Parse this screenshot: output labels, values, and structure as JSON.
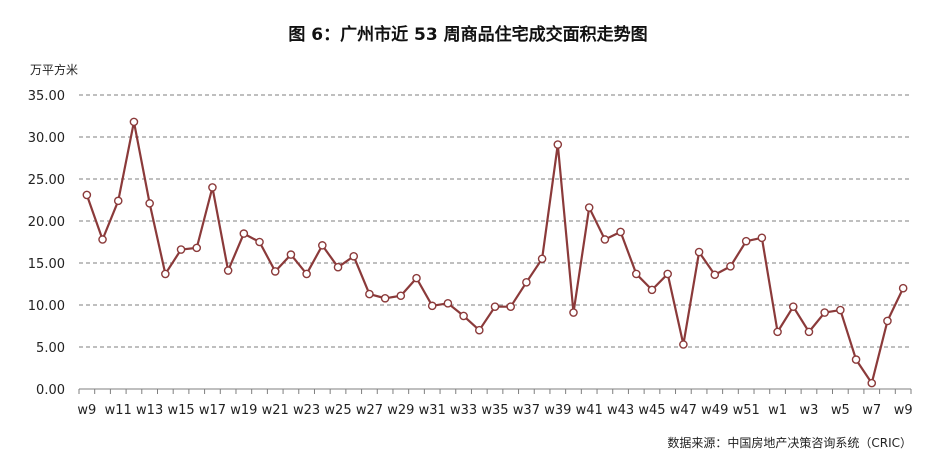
{
  "chart_data": {
    "type": "line",
    "title": "图 6：广州市近 53 周商品住宅成交面积走势图",
    "ylabel": "万平方米",
    "source": "数据来源：中国房地产决策咨询系统（CRIC）",
    "ylim": [
      0,
      35
    ],
    "yticks": [
      "0.00",
      "5.00",
      "10.00",
      "15.00",
      "20.00",
      "25.00",
      "30.00",
      "35.00"
    ],
    "grid": true,
    "legend": "none",
    "color": "#8b3a3a",
    "x": [
      "w9",
      "w10",
      "w11",
      "w12",
      "w13",
      "w14",
      "w15",
      "w16",
      "w17",
      "w18",
      "w19",
      "w20",
      "w21",
      "w22",
      "w23",
      "w24",
      "w25",
      "w26",
      "w27",
      "w28",
      "w29",
      "w30",
      "w31",
      "w32",
      "w33",
      "w34",
      "w35",
      "w36",
      "w37",
      "w38",
      "w39",
      "w40",
      "w41",
      "w42",
      "w43",
      "w44",
      "w45",
      "w46",
      "w47",
      "w48",
      "w49",
      "w50",
      "w51",
      "w52",
      "w1",
      "w2",
      "w3",
      "w4",
      "w5",
      "w6",
      "w7",
      "w8",
      "w9"
    ],
    "xtick_labels": [
      "w9",
      "",
      "w11",
      "",
      "w13",
      "",
      "w15",
      "",
      "w17",
      "",
      "w19",
      "",
      "w21",
      "",
      "w23",
      "",
      "w25",
      "",
      "w27",
      "",
      "w29",
      "",
      "w31",
      "",
      "w33",
      "",
      "w35",
      "",
      "w37",
      "",
      "w39",
      "",
      "w41",
      "",
      "w43",
      "",
      "w45",
      "",
      "w47",
      "",
      "w49",
      "",
      "w51",
      "",
      "w1",
      "",
      "w3",
      "",
      "w5",
      "",
      "w7",
      "",
      "w9"
    ],
    "values": [
      23.1,
      17.8,
      22.4,
      31.8,
      22.1,
      13.7,
      16.6,
      16.8,
      24.0,
      14.1,
      18.5,
      17.5,
      14.0,
      16.0,
      13.7,
      17.1,
      14.5,
      15.8,
      11.3,
      10.8,
      11.1,
      13.2,
      9.9,
      10.2,
      8.7,
      7.0,
      9.8,
      9.8,
      12.7,
      15.5,
      29.1,
      9.1,
      21.6,
      17.8,
      18.7,
      13.7,
      11.8,
      13.7,
      5.3,
      16.3,
      13.6,
      14.6,
      17.6,
      18.0,
      6.8,
      9.8,
      6.8,
      9.1,
      9.4,
      3.5,
      0.7,
      8.1,
      12.0
    ]
  }
}
